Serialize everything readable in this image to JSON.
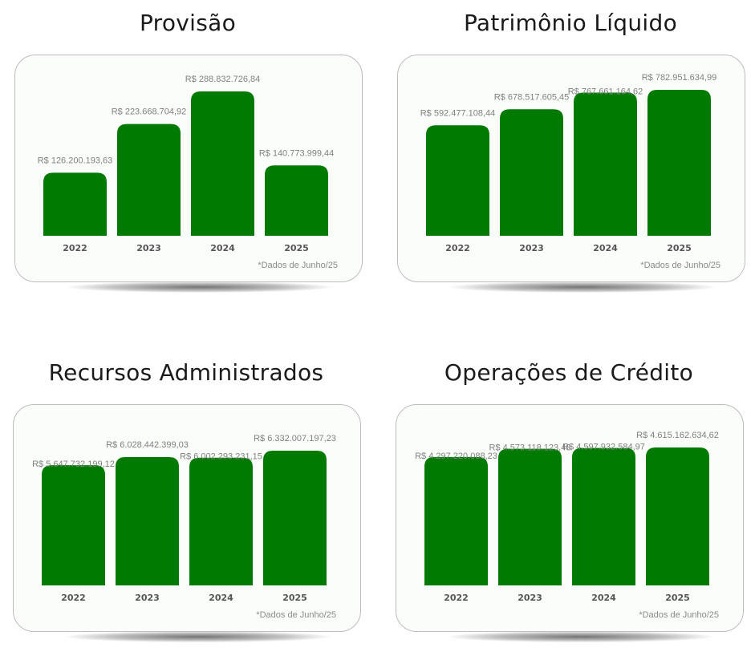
{
  "colors": {
    "bar": "#007a00",
    "value_label": "#808080",
    "year_label": "#555555",
    "title": "#1a1a1a",
    "card_border": "#bcbcbc",
    "card_bg": "#fbfdfb"
  },
  "chart_data": [
    {
      "type": "bar",
      "title": "Provisão",
      "categories": [
        "2022",
        "2023",
        "2024",
        "2025"
      ],
      "values": [
        126200193.63,
        223668704.92,
        288832726.84,
        140773999.44
      ],
      "value_labels": [
        "R$ 126.200.193,63",
        "R$ 223.668.704,92",
        "R$ 288.832.726,84",
        "R$ 140.773.999,44"
      ],
      "footnote": "*Dados de Junho/25",
      "ylim": [
        0,
        288832726.84
      ]
    },
    {
      "type": "bar",
      "title": "Patrimônio Líquido",
      "categories": [
        "2022",
        "2023",
        "2024",
        "2025"
      ],
      "values": [
        592477108.44,
        678517605.45,
        767661164.62,
        782951634.99
      ],
      "value_labels": [
        "R$ 592.477.108,44",
        "R$ 678.517.605,45",
        "R$ 767.661.164,62",
        "R$ 782.951.634,99"
      ],
      "footnote": "*Dados de Junho/25",
      "ylim": [
        0,
        782951634.99
      ]
    },
    {
      "type": "bar",
      "title": "Recursos Administrados",
      "categories": [
        "2022",
        "2023",
        "2024",
        "2025"
      ],
      "values": [
        5647732199.12,
        6028442399.03,
        6002293231.15,
        6332007197.23
      ],
      "value_labels": [
        "R$ 5.647.732.199,12",
        "R$ 6.028.442.399,03",
        "R$ 6.002.293.231,15",
        "R$ 6.332.007.197,23"
      ],
      "footnote": "*Dados de Junho/25",
      "ylim": [
        0,
        6332007197.23
      ]
    },
    {
      "type": "bar",
      "title": "Operações de Crédito",
      "categories": [
        "2022",
        "2023",
        "2024",
        "2025"
      ],
      "values": [
        4297220088.23,
        4573118123.48,
        4597932584.97,
        4615162634.62
      ],
      "value_labels": [
        "R$ 4.297.220.088,23",
        "R$ 4.573.118.123,48",
        "R$ 4.597.932.584,97",
        "R$ 4.615.162.634,62"
      ],
      "footnote": "*Dados de Junho/25",
      "ylim": [
        0,
        4615162634.62
      ]
    }
  ]
}
